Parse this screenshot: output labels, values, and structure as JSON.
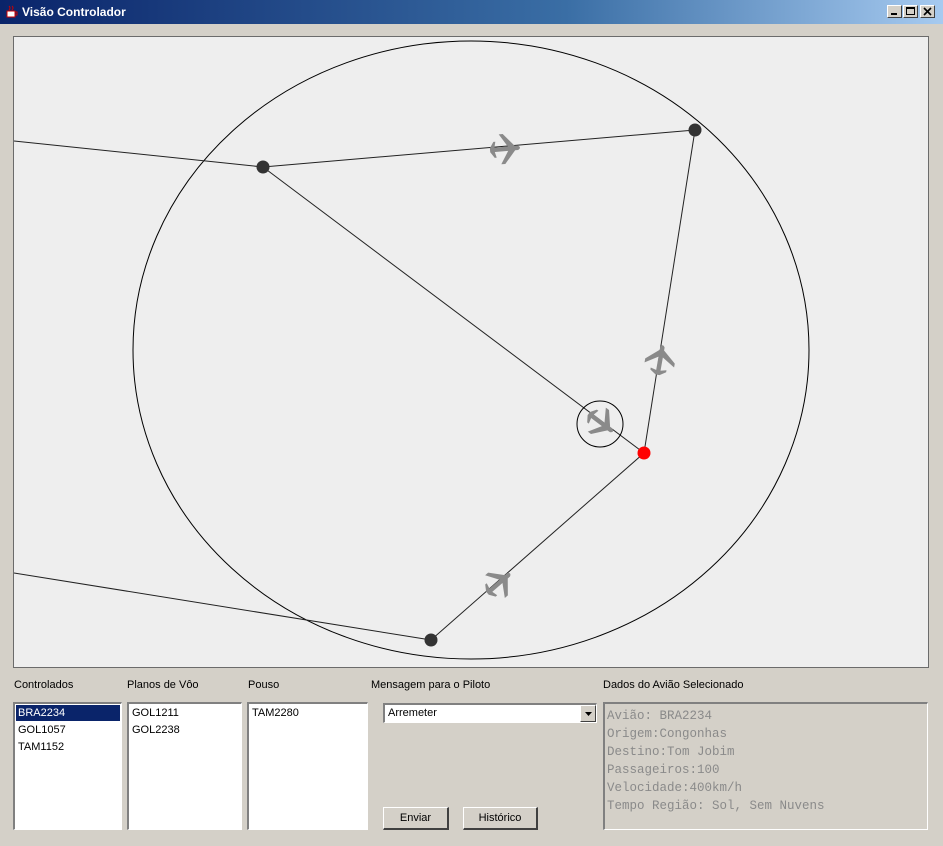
{
  "window": {
    "title": "Visão Controlador",
    "controls": [
      "minimize-icon",
      "maximize-icon",
      "close-icon"
    ]
  },
  "radar": {
    "icons": [
      "airplane-icon",
      "waypoint-marker",
      "selection-circle"
    ],
    "colors": {
      "background": "#eeeeee",
      "waypoint": "#333333",
      "waypoint_active": "#ff0000",
      "airplane": "#8a8a8a",
      "route": "#000000"
    }
  },
  "controlados": {
    "label": "Controlados",
    "items": [
      "BRA2234",
      "GOL1057",
      "TAM1152"
    ],
    "selected": "BRA2234"
  },
  "planos": {
    "label": "Planos de Vôo",
    "items": [
      "GOL1211",
      "GOL2238"
    ]
  },
  "pouso": {
    "label": "Pouso",
    "items": [
      "TAM2280"
    ]
  },
  "mensagem": {
    "label": "Mensagem para o Piloto",
    "selected": "Arremeter",
    "send_label": "Enviar",
    "history_label": "Histórico"
  },
  "dados": {
    "label": "Dados do Avião Selecionado",
    "lines": [
      "Avião: BRA2234",
      "Origem:Congonhas",
      "Destino:Tom Jobim",
      "Passageiros:100",
      "Velocidade:400km/h",
      "Tempo Região: Sol, Sem Nuvens"
    ]
  }
}
